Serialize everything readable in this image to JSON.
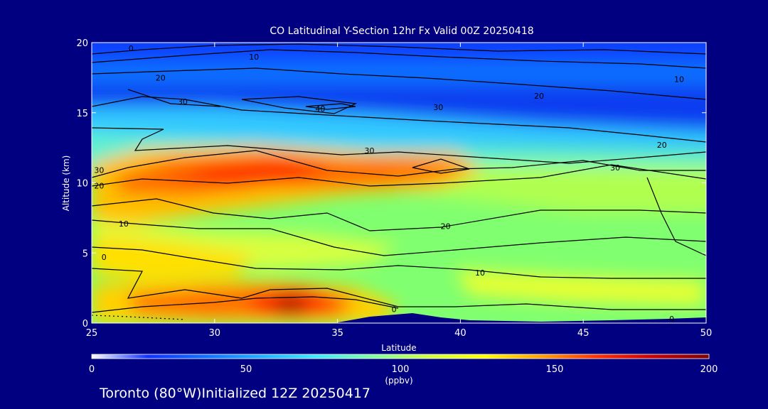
{
  "title": "CO Latitudinal Y-Section 12hr  Fx Valid 00Z 20250418",
  "footer": "Toronto (80°W)Initialized 12Z 20250417",
  "chart_data": {
    "type": "heatmap",
    "title": "CO Latitudinal Y-Section 12hr  Fx Valid 00Z 20250418",
    "xlabel": "Latitude",
    "ylabel": "Altitude (km)",
    "xlim": [
      25,
      50
    ],
    "ylim": [
      0,
      20
    ],
    "x_ticks": [
      25,
      30,
      35,
      40,
      45,
      50
    ],
    "y_ticks": [
      0,
      5,
      10,
      15,
      20
    ],
    "colorbar": {
      "min": 0,
      "max": 200,
      "ticks": [
        0,
        50,
        100,
        150,
        200
      ],
      "units": "(ppbv)",
      "colors": [
        "#ffffff",
        "#1030ff",
        "#1070ff",
        "#20b0ff",
        "#40e8ff",
        "#80ffa0",
        "#d0ff40",
        "#ffff00",
        "#ffa000",
        "#ff3000",
        "#c80000",
        "#800000"
      ]
    },
    "contour_labels": [
      {
        "text": "0",
        "x": 26.6,
        "y": 19.6
      },
      {
        "text": "10",
        "x": 31.6,
        "y": 19.0
      },
      {
        "text": "20",
        "x": 27.8,
        "y": 17.5
      },
      {
        "text": "30",
        "x": 28.7,
        "y": 15.8
      },
      {
        "text": "40",
        "x": 34.3,
        "y": 15.3
      },
      {
        "text": "30",
        "x": 39.1,
        "y": 15.4
      },
      {
        "text": "20",
        "x": 43.2,
        "y": 16.2
      },
      {
        "text": "10",
        "x": 48.9,
        "y": 17.4
      },
      {
        "text": "20",
        "x": 48.2,
        "y": 12.7
      },
      {
        "text": "30",
        "x": 46.3,
        "y": 11.1
      },
      {
        "text": "30",
        "x": 36.3,
        "y": 12.3
      },
      {
        "text": "30",
        "x": 25.3,
        "y": 10.9
      },
      {
        "text": "20",
        "x": 25.3,
        "y": 9.8
      },
      {
        "text": "10",
        "x": 26.3,
        "y": 7.1
      },
      {
        "text": "20",
        "x": 39.4,
        "y": 6.9
      },
      {
        "text": "0",
        "x": 25.5,
        "y": 4.7
      },
      {
        "text": "10",
        "x": 40.8,
        "y": 3.6
      },
      {
        "text": "0",
        "x": 37.3,
        "y": 1.0
      },
      {
        "text": "0",
        "x": 48.6,
        "y": 0.3
      }
    ]
  }
}
